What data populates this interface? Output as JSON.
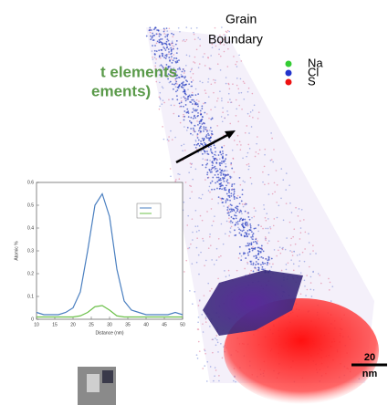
{
  "heading": [
    "t elements",
    "ements)"
  ],
  "annotation": [
    "Grain",
    "Boundary"
  ],
  "legend": [
    {
      "label": "Na",
      "color": "#33cc33"
    },
    {
      "label": "Cl",
      "color": "#2233cc"
    },
    {
      "label": "S",
      "color": "#ee1111"
    }
  ],
  "scale_bar": [
    "20",
    "nm"
  ],
  "chart_data": {
    "type": "line",
    "x_label": "Distance (nm)",
    "y_label": "Atomic %",
    "x": [
      10,
      12,
      14,
      16,
      18,
      20,
      22,
      24,
      26,
      28,
      30,
      32,
      34,
      36,
      38,
      40,
      42,
      44,
      46,
      48,
      50
    ],
    "series": [
      {
        "color": "#4a7fc0",
        "values": [
          0.03,
          0.02,
          0.02,
          0.02,
          0.03,
          0.05,
          0.12,
          0.3,
          0.5,
          0.55,
          0.45,
          0.22,
          0.08,
          0.04,
          0.03,
          0.02,
          0.02,
          0.02,
          0.02,
          0.03,
          0.02
        ]
      },
      {
        "color": "#6cc04a",
        "values": [
          0.01,
          0.01,
          0.01,
          0.01,
          0.01,
          0.01,
          0.015,
          0.03,
          0.055,
          0.06,
          0.04,
          0.015,
          0.01,
          0.01,
          0.01,
          0.01,
          0.01,
          0.01,
          0.01,
          0.01,
          0.01
        ]
      }
    ],
    "xlim": [
      10,
      50
    ],
    "xticks": [
      10,
      15,
      20,
      25,
      30,
      35,
      40,
      45,
      50
    ],
    "ylim": [
      0,
      0.6
    ],
    "yticks": [
      0,
      0.1,
      0.2,
      0.3,
      0.4,
      0.5,
      0.6
    ]
  }
}
